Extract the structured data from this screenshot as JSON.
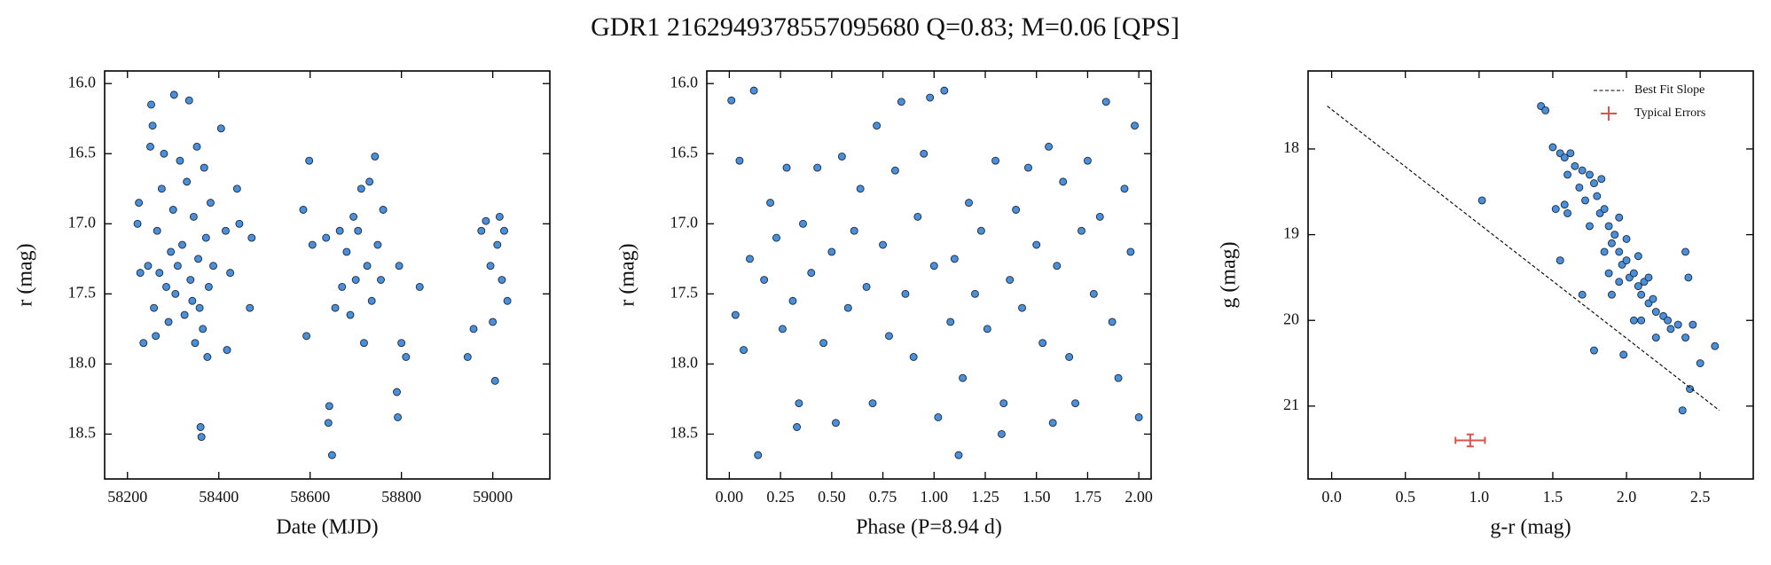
{
  "title": "GDR1 2162949378557095680  Q=0.83; M=0.06 [QPS]",
  "chart_data": [
    {
      "type": "scatter",
      "xlabel": "Date (MJD)",
      "ylabel": "r (mag)",
      "color": "#4a8fd9",
      "xlim": [
        58150,
        59125
      ],
      "ylim": [
        18.82,
        15.91
      ],
      "xticks": [
        58200,
        58400,
        58600,
        58800,
        59000
      ],
      "yticks": [
        {
          "value": 16,
          "label": "16.0"
        },
        16.5,
        {
          "value": 17,
          "label": "17.0"
        },
        17.5,
        {
          "value": 18,
          "label": "18.0"
        },
        18.5
      ],
      "x": [
        58225,
        58222,
        58228,
        58235,
        58245,
        58250,
        58252,
        58255,
        58258,
        58262,
        58265,
        58270,
        58275,
        58280,
        58285,
        58290,
        58295,
        58300,
        58302,
        58305,
        58310,
        58315,
        58320,
        58325,
        58330,
        58335,
        58338,
        58342,
        58345,
        58348,
        58352,
        58355,
        58358,
        58360,
        58362,
        58365,
        58368,
        58372,
        58375,
        58378,
        58382,
        58388,
        58405,
        58415,
        58418,
        58425,
        58440,
        58445,
        58468,
        58472,
        58585,
        58592,
        58598,
        58605,
        58635,
        58640,
        58642,
        58648,
        58655,
        58665,
        58670,
        58680,
        58688,
        58695,
        58700,
        58705,
        58712,
        58718,
        58725,
        58730,
        58735,
        58742,
        58748,
        58755,
        58760,
        58790,
        58792,
        58795,
        58800,
        58810,
        58840,
        58945,
        58958,
        58975,
        58985,
        58995,
        59000,
        59005,
        59010,
        59015,
        59020,
        59025,
        59032
      ],
      "y": [
        16.85,
        17.0,
        17.35,
        17.85,
        17.3,
        16.45,
        16.15,
        16.3,
        17.6,
        17.8,
        17.05,
        17.35,
        16.75,
        16.5,
        17.45,
        17.7,
        17.2,
        16.9,
        16.08,
        17.5,
        17.3,
        16.55,
        17.15,
        17.65,
        16.7,
        16.12,
        17.4,
        17.55,
        16.95,
        17.85,
        16.45,
        17.25,
        17.6,
        18.45,
        18.52,
        17.75,
        16.6,
        17.1,
        17.95,
        17.45,
        16.85,
        17.3,
        16.32,
        17.05,
        17.9,
        17.35,
        16.75,
        17.0,
        17.6,
        17.1,
        16.9,
        17.8,
        16.55,
        17.15,
        17.1,
        18.42,
        18.3,
        18.65,
        17.6,
        17.05,
        17.45,
        17.2,
        17.65,
        16.95,
        17.4,
        17.05,
        16.75,
        17.85,
        17.3,
        16.7,
        17.55,
        16.52,
        17.15,
        17.4,
        16.9,
        18.2,
        18.38,
        17.3,
        17.85,
        17.95,
        17.45,
        17.95,
        17.75,
        17.05,
        16.98,
        17.3,
        17.7,
        18.12,
        17.15,
        16.95,
        17.4,
        17.05,
        17.55
      ]
    },
    {
      "type": "scatter",
      "xlabel": "Phase (P=8.94 d)",
      "ylabel": "r (mag)",
      "color": "#4a8fd9",
      "xlim": [
        -0.11,
        2.06
      ],
      "ylim": [
        18.82,
        15.91
      ],
      "xticks": [
        {
          "value": 0,
          "label": "0.00"
        },
        0.25,
        {
          "value": 0.5,
          "label": "0.50"
        },
        0.75,
        {
          "value": 1,
          "label": "1.00"
        },
        1.25,
        {
          "value": 1.5,
          "label": "1.50"
        },
        1.75,
        {
          "value": 2,
          "label": "2.00"
        }
      ],
      "yticks": [
        {
          "value": 16,
          "label": "16.0"
        },
        16.5,
        {
          "value": 17,
          "label": "17.0"
        },
        17.5,
        {
          "value": 18,
          "label": "18.0"
        },
        18.5
      ],
      "x": [
        0.01,
        0.03,
        0.05,
        0.07,
        0.1,
        0.12,
        0.14,
        0.17,
        0.2,
        0.23,
        0.26,
        0.28,
        0.31,
        0.33,
        0.34,
        0.36,
        0.4,
        0.43,
        0.46,
        0.5,
        0.52,
        0.55,
        0.58,
        0.61,
        0.64,
        0.67,
        0.7,
        0.72,
        0.75,
        0.78,
        0.81,
        0.84,
        0.86,
        0.9,
        0.92,
        0.95,
        0.98,
        1.0,
        1.02,
        1.05,
        1.08,
        1.1,
        1.12,
        1.14,
        1.17,
        1.2,
        1.23,
        1.26,
        1.3,
        1.33,
        1.34,
        1.37,
        1.4,
        1.43,
        1.46,
        1.5,
        1.53,
        1.56,
        1.58,
        1.6,
        1.63,
        1.66,
        1.69,
        1.72,
        1.75,
        1.78,
        1.81,
        1.84,
        1.87,
        1.9,
        1.93,
        1.96,
        1.98,
        2.0
      ],
      "y": [
        16.12,
        17.65,
        16.55,
        17.9,
        17.25,
        16.05,
        18.65,
        17.4,
        16.85,
        17.1,
        17.75,
        16.6,
        17.55,
        18.45,
        18.28,
        17.0,
        17.35,
        16.6,
        17.85,
        17.2,
        18.42,
        16.52,
        17.6,
        17.05,
        16.75,
        17.45,
        18.28,
        16.3,
        17.15,
        17.8,
        16.62,
        16.13,
        17.5,
        17.95,
        16.95,
        16.5,
        16.1,
        17.3,
        18.38,
        16.05,
        17.7,
        17.25,
        18.65,
        18.1,
        16.85,
        17.5,
        17.05,
        17.75,
        16.55,
        18.5,
        18.28,
        17.4,
        16.9,
        17.6,
        16.6,
        17.15,
        17.85,
        16.45,
        18.42,
        17.3,
        16.7,
        17.95,
        18.28,
        17.05,
        16.55,
        17.5,
        16.95,
        16.13,
        17.7,
        18.1,
        16.75,
        17.2,
        16.3,
        18.38
      ]
    },
    {
      "type": "scatter",
      "xlabel": "g-r (mag)",
      "ylabel": "g (mag)",
      "color": "#4a8fd9",
      "legend": "upper right",
      "xlim": [
        -0.16,
        2.86
      ],
      "ylim": [
        21.85,
        17.09
      ],
      "xticks": [
        {
          "value": 0,
          "label": "0.0"
        },
        0.5,
        {
          "value": 1,
          "label": "1.0"
        },
        1.5,
        {
          "value": 2,
          "label": "2.0"
        },
        2.5
      ],
      "yticks": [
        18,
        19,
        20,
        21
      ],
      "x": [
        1.42,
        1.45,
        1.5,
        1.55,
        1.58,
        1.6,
        1.62,
        1.65,
        1.68,
        1.7,
        1.72,
        1.75,
        1.78,
        1.8,
        1.82,
        1.85,
        1.88,
        1.9,
        1.92,
        1.95,
        1.97,
        2.0,
        2.02,
        2.05,
        2.08,
        2.1,
        2.12,
        2.15,
        2.18,
        2.2,
        2.25,
        2.28,
        2.3,
        2.35,
        2.4,
        2.45,
        2.6,
        2.5,
        2.43,
        2.38,
        2.4,
        2.42,
        1.02,
        1.55,
        1.6,
        1.7,
        1.9,
        2.05,
        1.95,
        1.85,
        1.75,
        1.98,
        2.2,
        1.78,
        1.58,
        1.52,
        2.08,
        2.15,
        1.88,
        2.0,
        1.95,
        1.83,
        2.1
      ],
      "y": [
        17.5,
        17.55,
        17.98,
        18.05,
        18.1,
        18.3,
        18.05,
        18.2,
        18.45,
        18.25,
        18.6,
        18.3,
        18.4,
        18.55,
        18.75,
        18.7,
        18.9,
        19.1,
        19.0,
        19.2,
        19.35,
        19.3,
        19.5,
        19.45,
        19.6,
        19.7,
        19.55,
        19.8,
        19.75,
        19.9,
        19.95,
        20.0,
        20.1,
        20.05,
        20.2,
        20.05,
        20.3,
        20.5,
        20.8,
        21.05,
        19.2,
        19.5,
        18.6,
        19.3,
        18.75,
        19.7,
        19.7,
        20.0,
        19.55,
        19.2,
        18.9,
        20.4,
        20.2,
        20.35,
        18.65,
        18.7,
        19.25,
        19.5,
        19.45,
        19.05,
        18.8,
        18.35,
        20.0
      ],
      "fit_line": {
        "name": "Best Fit Slope",
        "color": "#000000",
        "x": [
          -0.03,
          2.63
        ],
        "y": [
          17.5,
          21.05
        ]
      },
      "errorbar": {
        "name": "Typical Errors",
        "color": "#d9534f",
        "x": 0.94,
        "y": 21.4,
        "xerr": 0.1,
        "yerr": 0.07
      }
    }
  ]
}
